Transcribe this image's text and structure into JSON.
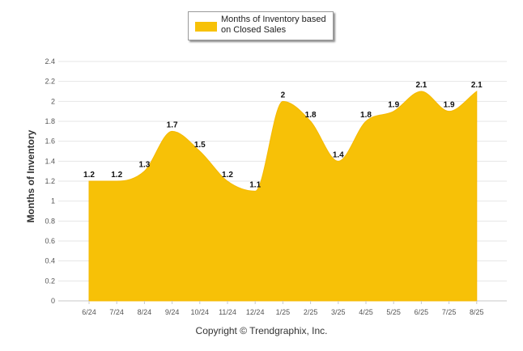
{
  "legend": {
    "label": "Months of Inventory based on Closed Sales",
    "color": "#f7c107"
  },
  "copyright": "Copyright © Trendgraphix, Inc.",
  "chart_data": {
    "type": "area",
    "ylabel": "Months of Inventory",
    "categories": [
      "6/24",
      "7/24",
      "8/24",
      "9/24",
      "10/24",
      "11/24",
      "12/24",
      "1/25",
      "2/25",
      "3/25",
      "4/25",
      "5/25",
      "6/25",
      "7/25",
      "8/25"
    ],
    "series": [
      {
        "name": "Months of Inventory based on Closed Sales",
        "values": [
          1.2,
          1.2,
          1.3,
          1.7,
          1.5,
          1.2,
          1.1,
          2,
          1.8,
          1.4,
          1.8,
          1.9,
          2.1,
          1.9,
          2.1
        ],
        "color": "#f7c107"
      }
    ],
    "yticks": [
      "0",
      "0.2",
      "0.4",
      "0.6",
      "0.8",
      "1",
      "1.2",
      "1.4",
      "1.6",
      "1.8",
      "2",
      "2.2",
      "2.4"
    ],
    "ylim": [
      0,
      2.4
    ],
    "grid": true,
    "legend_position": "top-center",
    "data_labels": true
  }
}
